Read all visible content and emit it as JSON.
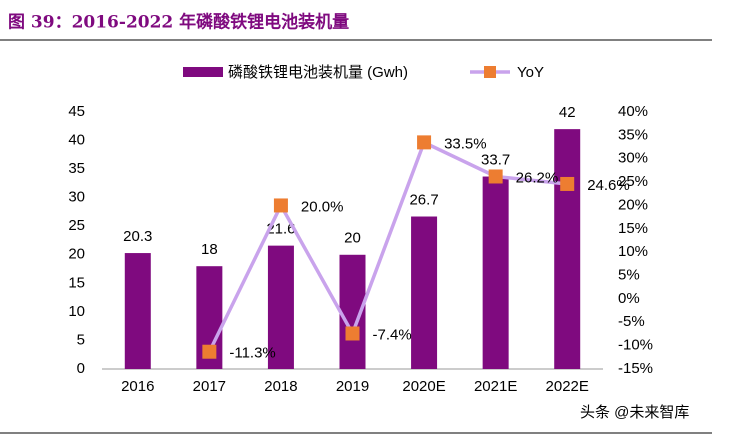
{
  "header": {
    "title": "图 39：2016-2022 年磷酸铁锂电池装机量"
  },
  "chart_data": {
    "type": "bar-line",
    "categories": [
      "2016",
      "2017",
      "2018",
      "2019",
      "2020E",
      "2021E",
      "2022E"
    ],
    "series": [
      {
        "name": "磷酸铁锂电池装机量 (Gwh)",
        "type": "bar",
        "color": "#7f0a7f",
        "values": [
          20.3,
          18,
          21.6,
          20,
          26.7,
          33.7,
          42
        ]
      },
      {
        "name": "YoY",
        "type": "line",
        "axis": "y2",
        "color": "#c9a3ec",
        "marker_color": "#ed7d31",
        "values": [
          null,
          -11.3,
          20.0,
          -7.4,
          33.5,
          26.2,
          24.6
        ],
        "value_labels": [
          null,
          "-11.3%",
          "20.0%",
          "-7.4%",
          "33.5%",
          "26.2%",
          "24.6%"
        ]
      }
    ],
    "ylim": [
      0,
      45
    ],
    "yticks": [
      0,
      5,
      10,
      15,
      20,
      25,
      30,
      35,
      40,
      45
    ],
    "y2lim": [
      -15,
      40
    ],
    "y2ticks": [
      {
        "value": -15,
        "label": "-15%"
      },
      {
        "value": -10,
        "label": "-10%"
      },
      {
        "value": -5,
        "label": "-5%"
      },
      {
        "value": 0,
        "label": "0%"
      },
      {
        "value": 5,
        "label": "5%"
      },
      {
        "value": 10,
        "label": "10%"
      },
      {
        "value": 15,
        "label": "15%"
      },
      {
        "value": 20,
        "label": "20%"
      },
      {
        "value": 25,
        "label": "25%"
      },
      {
        "value": 30,
        "label": "30%"
      },
      {
        "value": 35,
        "label": "35%"
      },
      {
        "value": 40,
        "label": "40%"
      }
    ],
    "legend": "top"
  },
  "watermark": "头条 @未来智库"
}
